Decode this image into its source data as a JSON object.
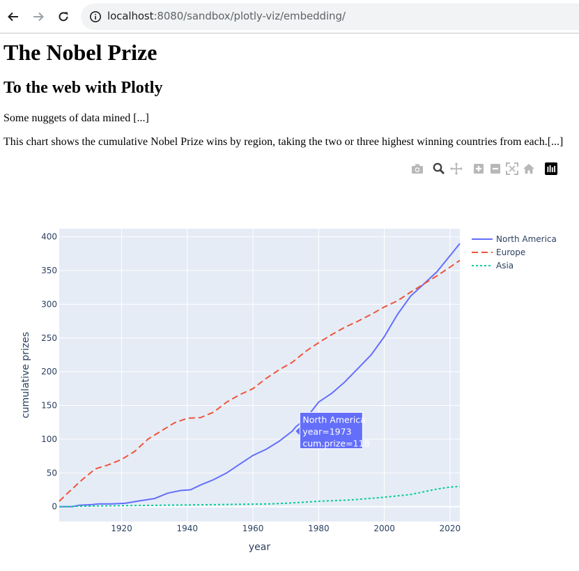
{
  "browser": {
    "url_host": "localhost",
    "url_path": ":8080/sandbox/plotly-viz/embedding/",
    "icons": [
      "back-arrow-icon",
      "forward-arrow-icon",
      "reload-icon",
      "info-icon"
    ]
  },
  "page": {
    "title": "The Nobel Prize",
    "subtitle": "To the web with Plotly",
    "intro": "Some nuggets of data mined [...]",
    "description": "This chart shows the cumulative Nobel Prize wins by region, taking the two or three highest winning countries from each.[...]"
  },
  "modebar": {
    "icons": [
      "camera-icon",
      "zoom-icon",
      "pan-icon",
      "zoom-in-icon",
      "zoom-out-icon",
      "autoscale-icon",
      "home-icon",
      "plotly-logo-icon"
    ]
  },
  "tooltip": {
    "line1": "North America",
    "line2": "year=1973",
    "line3": "cum.prize=118"
  },
  "chart_data": {
    "type": "line",
    "xlabel": "year",
    "ylabel": "cumulative prizes",
    "xlim": [
      1901,
      2023
    ],
    "ylim": [
      -22,
      412
    ],
    "xticks": [
      1920,
      1940,
      1960,
      1980,
      2000,
      2020
    ],
    "yticks": [
      0,
      50,
      100,
      150,
      200,
      250,
      300,
      350,
      400
    ],
    "grid": true,
    "legend_position": "top-right",
    "series": [
      {
        "name": "North America",
        "color": "#636efa",
        "dash": "solid",
        "x": [
          1901,
          1905,
          1907,
          1911,
          1913,
          1917,
          1921,
          1926,
          1930,
          1934,
          1938,
          1941,
          1944,
          1948,
          1952,
          1956,
          1960,
          1964,
          1968,
          1972,
          1973,
          1976,
          1980,
          1984,
          1988,
          1992,
          1996,
          2000,
          2004,
          2008,
          2012,
          2016,
          2020,
          2023
        ],
        "y": [
          0,
          0,
          2,
          3,
          4,
          4,
          5,
          9,
          12,
          20,
          24,
          25,
          32,
          40,
          50,
          63,
          76,
          85,
          97,
          112,
          118,
          130,
          155,
          168,
          185,
          205,
          225,
          252,
          285,
          312,
          330,
          348,
          372,
          390
        ]
      },
      {
        "name": "Europe",
        "color": "#ef553b",
        "dash": "dash",
        "x": [
          1901,
          1904,
          1908,
          1912,
          1916,
          1920,
          1924,
          1928,
          1932,
          1936,
          1940,
          1944,
          1948,
          1952,
          1956,
          1960,
          1964,
          1968,
          1972,
          1976,
          1980,
          1984,
          1988,
          1992,
          1996,
          2000,
          2004,
          2008,
          2012,
          2016,
          2020,
          2023
        ],
        "y": [
          8,
          22,
          40,
          56,
          62,
          70,
          82,
          100,
          112,
          124,
          131,
          132,
          140,
          155,
          166,
          175,
          190,
          203,
          214,
          230,
          243,
          255,
          266,
          275,
          285,
          296,
          305,
          318,
          330,
          342,
          355,
          365
        ]
      },
      {
        "name": "Asia",
        "color": "#00cc96",
        "dash": "dot",
        "x": [
          1901,
          1913,
          1930,
          1949,
          1965,
          1970,
          1980,
          1990,
          2000,
          2004,
          2008,
          2012,
          2016,
          2020,
          2023
        ],
        "y": [
          0,
          1,
          2,
          3,
          4,
          5,
          8,
          10,
          14,
          16,
          18,
          22,
          26,
          29,
          30
        ]
      }
    ]
  }
}
